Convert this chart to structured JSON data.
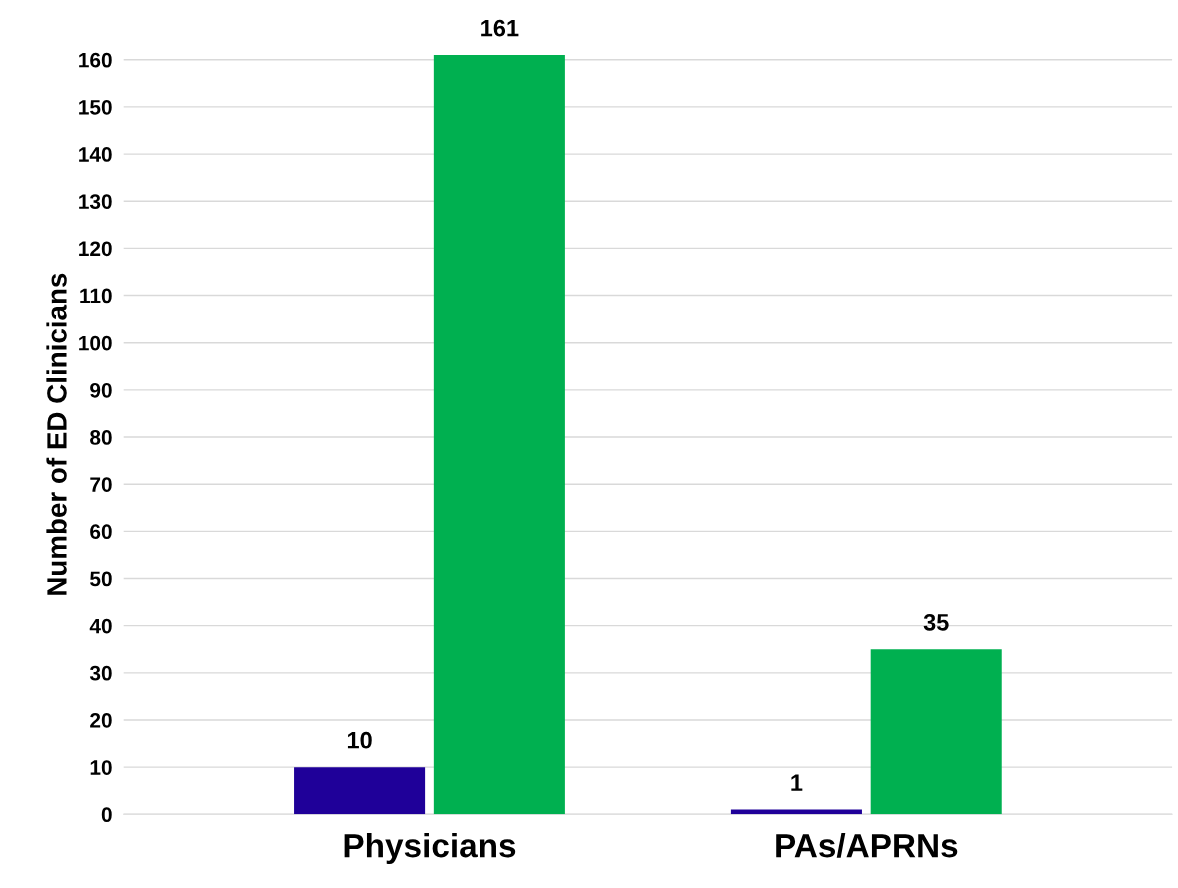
{
  "chart_data": {
    "type": "bar",
    "ylabel": "Number of ED Clinicians",
    "categories": [
      "Physicians",
      "PAs/APRNs"
    ],
    "series": [
      {
        "color": "#1f0099",
        "values": [
          10,
          1
        ]
      },
      {
        "color": "#00b050",
        "values": [
          161,
          35
        ]
      }
    ],
    "ylim": [
      0,
      161
    ],
    "yticks": [
      0,
      10,
      20,
      30,
      40,
      50,
      60,
      70,
      80,
      90,
      100,
      110,
      120,
      130,
      140,
      150,
      160
    ],
    "grid": "y",
    "data_labels": true
  }
}
